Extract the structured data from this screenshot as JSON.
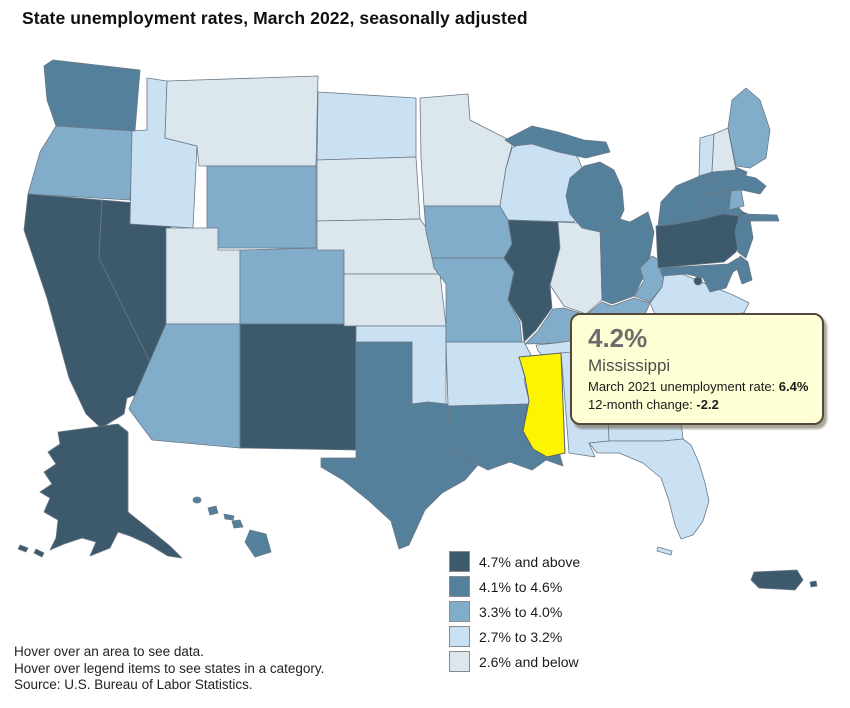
{
  "title": "State unemployment rates, March 2022, seasonally adjusted",
  "tooltip": {
    "rate": "4.2%",
    "state": "Mississippi",
    "line1_label": "March 2021 unemployment rate:",
    "line1_value": "6.4%",
    "line2_label": "12-month change:",
    "line2_value": "-2.2"
  },
  "notes": [
    "Hover over an area to see data.",
    "Hover over legend items to see states in a category.",
    "Source: U.S. Bureau of Labor Statistics."
  ],
  "chart_data": {
    "type": "heatmap",
    "subtype": "us-state-choropleth",
    "title": "State unemployment rates, March 2022, seasonally adjusted",
    "legend_position": "bottom-right",
    "border_color": "#6b7886",
    "categories": [
      {
        "key": "c5",
        "label": "4.7% and above",
        "color": "#3c5a6c"
      },
      {
        "key": "c4",
        "label": "4.1% to 4.6%",
        "color": "#55809b"
      },
      {
        "key": "c3",
        "label": "3.3% to 4.0%",
        "color": "#81adca"
      },
      {
        "key": "c2",
        "label": "2.7% to 3.2%",
        "color": "#c9e1f2"
      },
      {
        "key": "c1",
        "label": "2.6% and below",
        "color": "#dce7ed"
      }
    ],
    "state_categories": {
      "WA": "c4",
      "OR": "c3",
      "CA": "c5",
      "NV": "c5",
      "ID": "c2",
      "MT": "c1",
      "WY": "c3",
      "UT": "c1",
      "CO": "c3",
      "AZ": "c3",
      "NM": "c5",
      "ND": "c2",
      "SD": "c1",
      "NE": "c1",
      "KS": "c1",
      "OK": "c2",
      "TX": "c4",
      "MN": "c1",
      "IA": "c3",
      "MO": "c3",
      "AR": "c2",
      "LA": "c4",
      "WI": "c2",
      "IL": "c5",
      "IN": "c1",
      "OH": "c4",
      "MI": "c4",
      "KY": "c3",
      "TN": "c2",
      "WV": "c3",
      "VA": "c2",
      "NC": "c3",
      "SC": "c3",
      "GA": "c2",
      "AL": "c2",
      "MS": "c4",
      "FL": "c2",
      "PA": "c5",
      "NY": "c4",
      "NJ": "c4",
      "MD": "c4",
      "DE": "c4",
      "DC": "c5",
      "VT": "c2",
      "NH": "c1",
      "ME": "c3",
      "MA": "c4",
      "CT": "c4",
      "RI": "c3",
      "AK": "c5",
      "HI": "c4",
      "PR": "c5"
    },
    "highlight": {
      "state": "MS",
      "fill": "#fdf500",
      "current_rate": "4.2%",
      "march_2021_rate": "6.4%",
      "change_12mo": "-2.2"
    }
  }
}
